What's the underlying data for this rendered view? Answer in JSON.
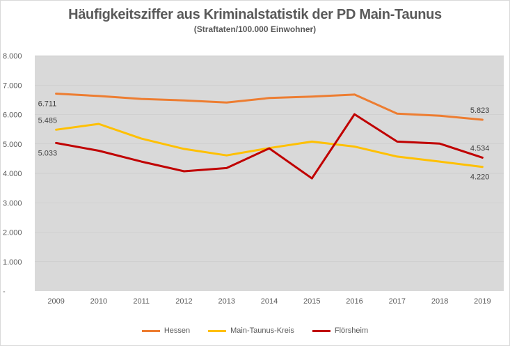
{
  "chart_data": {
    "type": "line",
    "title": "Häufigkeitsziffer aus Kriminalstatistik der PD Main-Taunus",
    "subtitle": "(Straftaten/100.000  Einwohner)",
    "x": [
      "2009",
      "2010",
      "2011",
      "2012",
      "2013",
      "2014",
      "2015",
      "2016",
      "2017",
      "2018",
      "2019"
    ],
    "ylim": [
      0,
      8000
    ],
    "yticks": [
      {
        "value": 0,
        "label": "-"
      },
      {
        "value": 1000,
        "label": "1.000"
      },
      {
        "value": 2000,
        "label": "2.000"
      },
      {
        "value": 3000,
        "label": "3.000"
      },
      {
        "value": 4000,
        "label": "4.000"
      },
      {
        "value": 5000,
        "label": "5.000"
      },
      {
        "value": 6000,
        "label": "6.000"
      },
      {
        "value": 7000,
        "label": "7.000"
      },
      {
        "value": 8000,
        "label": "8.000"
      }
    ],
    "legend_position": "bottom",
    "plot_background": "#d9d9d9",
    "series": [
      {
        "name": "Hessen",
        "color": "#ed7d31",
        "values": [
          6711,
          6630,
          6530,
          6480,
          6410,
          6560,
          6610,
          6680,
          6030,
          5960,
          5823
        ],
        "labels": [
          {
            "index": 0,
            "text": "6.711",
            "side": "below"
          },
          {
            "index": 10,
            "text": "5.823",
            "side": "above"
          }
        ]
      },
      {
        "name": "Main-Taunus-Kreis",
        "color": "#ffc000",
        "values": [
          5485,
          5680,
          5180,
          4830,
          4610,
          4860,
          5080,
          4910,
          4570,
          4400,
          4220
        ],
        "labels": [
          {
            "index": 0,
            "text": "5.485",
            "side": "above"
          },
          {
            "index": 10,
            "text": "4.220",
            "side": "below"
          }
        ]
      },
      {
        "name": "Flörsheim",
        "color": "#c00000",
        "values": [
          5033,
          4770,
          4400,
          4070,
          4180,
          4850,
          3830,
          6010,
          5080,
          5010,
          4534
        ],
        "labels": [
          {
            "index": 0,
            "text": "5.033",
            "side": "below"
          },
          {
            "index": 10,
            "text": "4.534",
            "side": "above"
          }
        ]
      }
    ]
  }
}
